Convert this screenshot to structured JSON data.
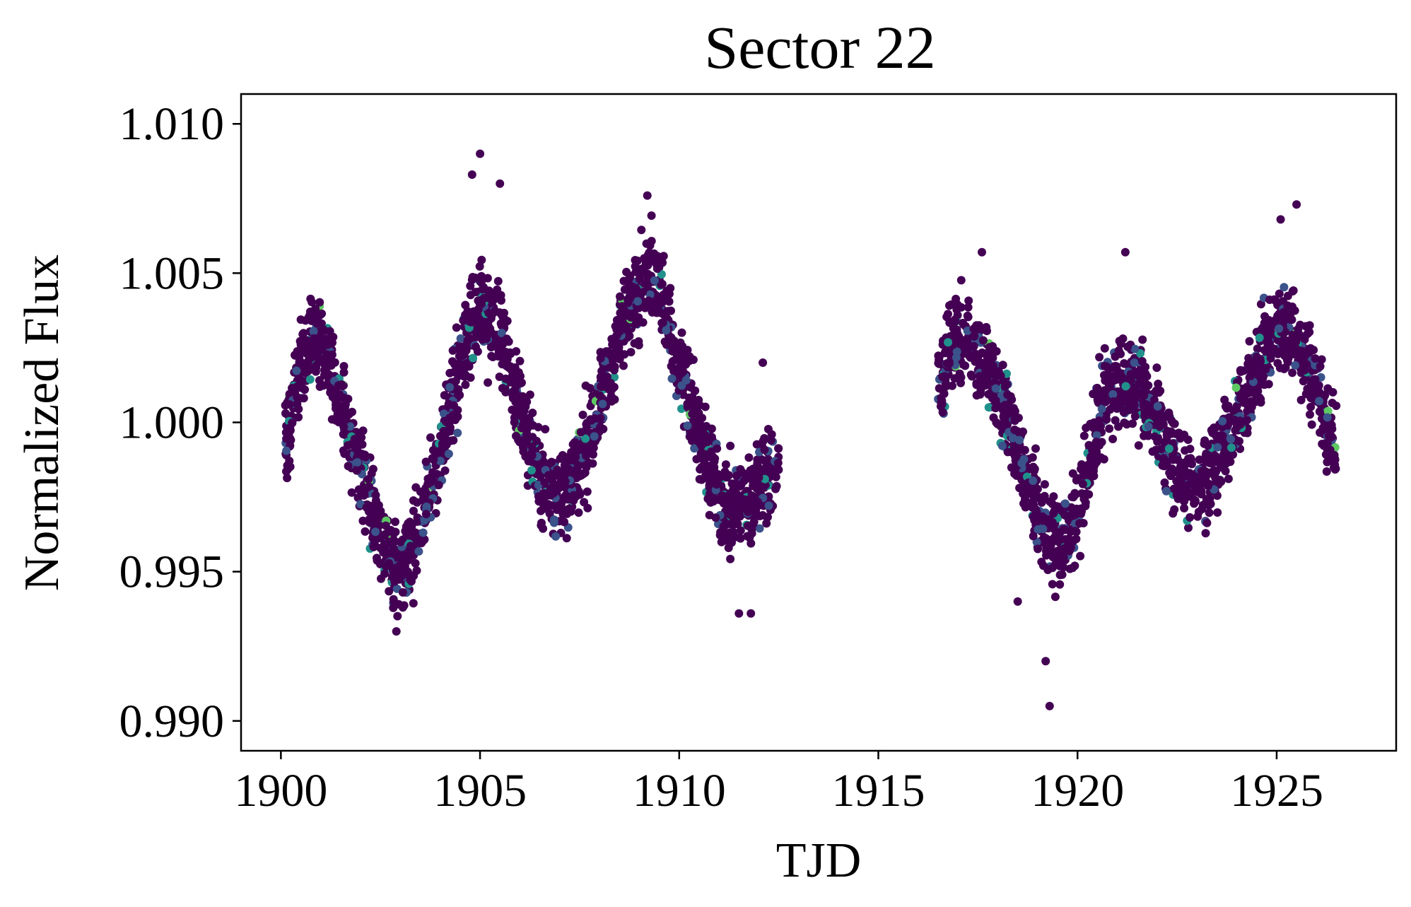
{
  "chart_data": {
    "type": "scatter",
    "title": "Sector 22",
    "xlabel": "TJD",
    "ylabel": "Normalized Flux",
    "xlim": [
      1899,
      1928
    ],
    "ylim": [
      0.989,
      1.011
    ],
    "x_ticks": [
      1900,
      1905,
      1910,
      1915,
      1920,
      1925
    ],
    "y_ticks": [
      0.99,
      0.995,
      1.0,
      1.005,
      1.01
    ],
    "x_tick_labels": [
      "1900",
      "1905",
      "1910",
      "1915",
      "1920",
      "1925"
    ],
    "y_tick_labels": [
      "0.990",
      "0.995",
      "1.000",
      "1.005",
      "1.010"
    ],
    "grid": false,
    "colormap": "viridis",
    "colors": {
      "dominant": "#440154",
      "secondary": "#3b528b",
      "accent": "#21918c",
      "highlight": "#5ec962"
    },
    "segments": [
      {
        "x_range": [
          1900.1,
          1912.5
        ],
        "trend": [
          [
            1900.1,
            0.9993
          ],
          [
            1900.5,
            1.002
          ],
          [
            1900.9,
            1.003
          ],
          [
            1901.3,
            1.0015
          ],
          [
            1902.0,
            0.9985
          ],
          [
            1902.5,
            0.9962
          ],
          [
            1902.9,
            0.995
          ],
          [
            1903.4,
            0.9958
          ],
          [
            1904.0,
            0.999
          ],
          [
            1904.6,
            1.0025
          ],
          [
            1905.0,
            1.004
          ],
          [
            1905.5,
            1.003
          ],
          [
            1906.0,
            1.0005
          ],
          [
            1906.5,
            0.9982
          ],
          [
            1907.0,
            0.9975
          ],
          [
            1907.5,
            0.9985
          ],
          [
            1908.0,
            1.0005
          ],
          [
            1908.6,
            1.0035
          ],
          [
            1909.2,
            1.005
          ],
          [
            1909.6,
            1.004
          ],
          [
            1910.2,
            1.001
          ],
          [
            1910.8,
            0.9985
          ],
          [
            1911.2,
            0.997
          ],
          [
            1911.8,
            0.9975
          ],
          [
            1912.5,
            0.9985
          ]
        ]
      },
      {
        "x_range": [
          1916.5,
          1926.5
        ],
        "trend": [
          [
            1916.5,
            1.0015
          ],
          [
            1916.9,
            1.0028
          ],
          [
            1917.3,
            1.0025
          ],
          [
            1917.8,
            1.0015
          ],
          [
            1918.3,
            1.0
          ],
          [
            1918.8,
            0.9978
          ],
          [
            1919.2,
            0.9962
          ],
          [
            1919.6,
            0.9958
          ],
          [
            1920.0,
            0.9972
          ],
          [
            1920.5,
            1.0
          ],
          [
            1921.0,
            1.0015
          ],
          [
            1921.5,
            1.0012
          ],
          [
            1922.0,
            1.0
          ],
          [
            1922.5,
            0.9985
          ],
          [
            1923.0,
            0.9978
          ],
          [
            1923.5,
            0.9985
          ],
          [
            1924.0,
            1.0002
          ],
          [
            1924.5,
            1.0018
          ],
          [
            1925.0,
            1.003
          ],
          [
            1925.4,
            1.003
          ],
          [
            1925.9,
            1.0015
          ],
          [
            1926.5,
            0.999
          ]
        ]
      }
    ],
    "scatter_width": 0.0013,
    "outliers": [
      [
        1905.0,
        1.009
      ],
      [
        1904.8,
        1.0083
      ],
      [
        1905.5,
        1.008
      ],
      [
        1919.3,
        0.9905
      ],
      [
        1919.2,
        0.992
      ],
      [
        1902.9,
        0.993
      ],
      [
        1911.5,
        0.9936
      ],
      [
        1911.8,
        0.9936
      ],
      [
        1917.6,
        1.0057
      ],
      [
        1921.2,
        1.0057
      ],
      [
        1925.5,
        1.0073
      ],
      [
        1925.1,
        1.0068
      ],
      [
        1909.2,
        1.0076
      ],
      [
        1918.5,
        0.994
      ],
      [
        1912.1,
        1.002
      ]
    ]
  }
}
